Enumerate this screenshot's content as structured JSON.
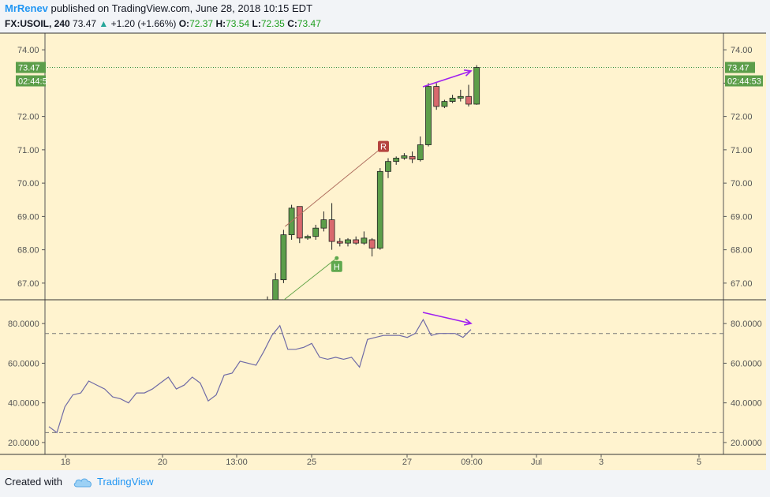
{
  "header": {
    "author": "MrRenev",
    "published_text": " published on TradingView.com, June 28, 2018 10:15 EDT"
  },
  "quote": {
    "symbol": "FX:USOIL, 240",
    "last": "73.47",
    "change": "+1.20 (+1.66%)",
    "o_label": "O:",
    "o": "72.37",
    "h_label": "H:",
    "h": "73.54",
    "l_label": "L:",
    "l": "72.35",
    "c_label": "C:",
    "c": "73.47"
  },
  "footer": {
    "created_with": "Created with",
    "brand": "TradingView"
  },
  "colors": {
    "background": "#fff3cf",
    "bull": "#5c9e4a",
    "bear": "#d9696e",
    "wick": "#222222",
    "rsi_line": "#6f6aa6",
    "annotation": "#a020f0",
    "price_label": "#5c9e4a",
    "r_marker": "#b5443f",
    "h_marker": "#5fa84e"
  },
  "chart_data": [
    {
      "type": "candlestick",
      "symbol": "FX:USOIL",
      "interval": "240",
      "y_ticks": [
        "67.00",
        "68.00",
        "69.00",
        "70.00",
        "71.00",
        "72.00",
        "73.00",
        "74.00"
      ],
      "ylim": [
        66.5,
        74.5
      ],
      "last_price_label": "73.47",
      "countdown_label": "02:44:53",
      "countdown_label_left": "02:44:5",
      "candles": [
        {
          "o": 66.4,
          "h": 66.6,
          "l": 66.2,
          "c": 66.5
        },
        {
          "o": 66.5,
          "h": 67.3,
          "l": 66.4,
          "c": 67.1
        },
        {
          "o": 67.1,
          "h": 68.6,
          "l": 67.0,
          "c": 68.45
        },
        {
          "o": 68.45,
          "h": 69.35,
          "l": 68.3,
          "c": 69.25
        },
        {
          "o": 69.3,
          "h": 69.3,
          "l": 68.2,
          "c": 68.35
        },
        {
          "o": 68.35,
          "h": 68.45,
          "l": 68.3,
          "c": 68.4
        },
        {
          "o": 68.4,
          "h": 68.75,
          "l": 68.3,
          "c": 68.65
        },
        {
          "o": 68.65,
          "h": 69.15,
          "l": 68.55,
          "c": 68.9
        },
        {
          "o": 68.9,
          "h": 69.4,
          "l": 68.0,
          "c": 68.25
        },
        {
          "o": 68.25,
          "h": 68.35,
          "l": 68.1,
          "c": 68.2
        },
        {
          "o": 68.2,
          "h": 68.35,
          "l": 68.1,
          "c": 68.3
        },
        {
          "o": 68.3,
          "h": 68.4,
          "l": 68.15,
          "c": 68.2
        },
        {
          "o": 68.2,
          "h": 68.55,
          "l": 68.15,
          "c": 68.35
        },
        {
          "o": 68.3,
          "h": 68.35,
          "l": 67.8,
          "c": 68.05
        },
        {
          "o": 68.05,
          "h": 70.45,
          "l": 68.0,
          "c": 70.35
        },
        {
          "o": 70.35,
          "h": 70.75,
          "l": 70.15,
          "c": 70.65
        },
        {
          "o": 70.65,
          "h": 70.8,
          "l": 70.55,
          "c": 70.75
        },
        {
          "o": 70.75,
          "h": 70.9,
          "l": 70.7,
          "c": 70.82
        },
        {
          "o": 70.8,
          "h": 70.95,
          "l": 70.6,
          "c": 70.72
        },
        {
          "o": 70.7,
          "h": 71.4,
          "l": 70.65,
          "c": 71.15
        },
        {
          "o": 71.15,
          "h": 73.0,
          "l": 71.1,
          "c": 72.9
        },
        {
          "o": 72.9,
          "h": 73.0,
          "l": 72.2,
          "c": 72.3
        },
        {
          "o": 72.3,
          "h": 72.5,
          "l": 72.25,
          "c": 72.45
        },
        {
          "o": 72.45,
          "h": 72.65,
          "l": 72.4,
          "c": 72.55
        },
        {
          "o": 72.55,
          "h": 72.8,
          "l": 72.45,
          "c": 72.6
        },
        {
          "o": 72.6,
          "h": 72.95,
          "l": 72.3,
          "c": 72.37
        },
        {
          "o": 72.37,
          "h": 73.54,
          "l": 72.35,
          "c": 73.47
        }
      ],
      "markers": [
        {
          "label": "R",
          "candle_index": 15,
          "price": 71.1
        },
        {
          "label": "H",
          "candle_index": 9,
          "price": 67.5
        }
      ]
    },
    {
      "type": "line",
      "name": "",
      "y_ticks": [
        "20.0000",
        "40.0000",
        "60.0000",
        "80.0000"
      ],
      "ylim": [
        14,
        92
      ],
      "levels": [
        25,
        75
      ],
      "values": [
        28,
        25,
        38,
        44,
        45,
        51,
        49,
        47,
        43,
        42,
        40,
        45,
        45,
        47,
        50,
        53,
        47,
        49,
        53,
        50,
        41,
        44,
        54,
        55,
        61,
        60,
        59,
        66,
        74,
        79,
        67,
        67,
        68,
        70,
        63,
        62,
        63,
        62,
        63,
        58,
        72,
        73,
        74,
        74,
        74,
        73,
        75,
        82,
        74,
        75,
        75,
        75,
        73,
        77
      ],
      "x_tick_labels": [
        "18",
        "20",
        "13:00",
        "25",
        "27",
        "09:00",
        "Jul",
        "3",
        "5"
      ]
    }
  ]
}
